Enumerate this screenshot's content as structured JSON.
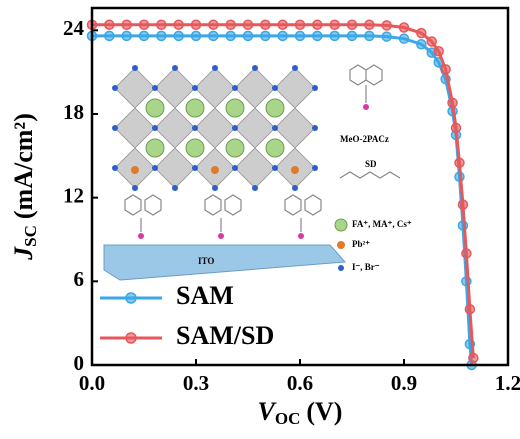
{
  "chart_data": {
    "type": "line",
    "x_label": {
      "symbol": "V",
      "subscript": "OC",
      "unit": "(V)"
    },
    "y_label": {
      "symbol": "J",
      "subscript": "SC",
      "unit": "(mA/cm²)"
    },
    "xlim": [
      0,
      1.2
    ],
    "xticks": [
      {
        "value": 0,
        "label": "0.0"
      },
      0.3,
      0.6,
      0.9,
      1.2
    ],
    "ylim": [
      0,
      25.6
    ],
    "yticks": [
      0,
      6,
      12,
      18,
      24
    ],
    "legend": "lower left",
    "inset_labels": [
      "MeO-2PACz",
      "SD",
      "FA⁺, MA⁺, Cs⁺",
      "Pb²⁺",
      "I⁻, Br⁻",
      "ITO"
    ],
    "series": [
      {
        "name": "SAM",
        "color": "#3ba7e6",
        "x": [
          0,
          0.05,
          0.1,
          0.15,
          0.2,
          0.25,
          0.3,
          0.35,
          0.4,
          0.45,
          0.5,
          0.55,
          0.6,
          0.65,
          0.7,
          0.75,
          0.8,
          0.85,
          0.9,
          0.95,
          0.98,
          1.0,
          1.02,
          1.04,
          1.05,
          1.06,
          1.07,
          1.08,
          1.09,
          1.095
        ],
        "values": [
          23.6,
          23.6,
          23.6,
          23.6,
          23.6,
          23.6,
          23.6,
          23.6,
          23.6,
          23.6,
          23.6,
          23.6,
          23.6,
          23.6,
          23.6,
          23.6,
          23.6,
          23.55,
          23.4,
          23.0,
          22.4,
          21.7,
          20.5,
          18.2,
          16.5,
          13.5,
          10.0,
          6.0,
          1.5,
          0
        ]
      },
      {
        "name": "SAM/SD",
        "color": "#e8575a",
        "x": [
          0,
          0.05,
          0.1,
          0.15,
          0.2,
          0.25,
          0.3,
          0.35,
          0.4,
          0.45,
          0.5,
          0.55,
          0.6,
          0.65,
          0.7,
          0.75,
          0.8,
          0.85,
          0.9,
          0.95,
          0.98,
          1.0,
          1.02,
          1.04,
          1.05,
          1.06,
          1.07,
          1.08,
          1.09,
          1.1
        ],
        "values": [
          24.4,
          24.4,
          24.4,
          24.4,
          24.4,
          24.4,
          24.4,
          24.4,
          24.4,
          24.4,
          24.4,
          24.4,
          24.4,
          24.4,
          24.4,
          24.4,
          24.4,
          24.35,
          24.2,
          23.8,
          23.2,
          22.5,
          21.2,
          18.8,
          17.0,
          14.5,
          11.5,
          8.0,
          4.0,
          0.5
        ]
      }
    ]
  }
}
